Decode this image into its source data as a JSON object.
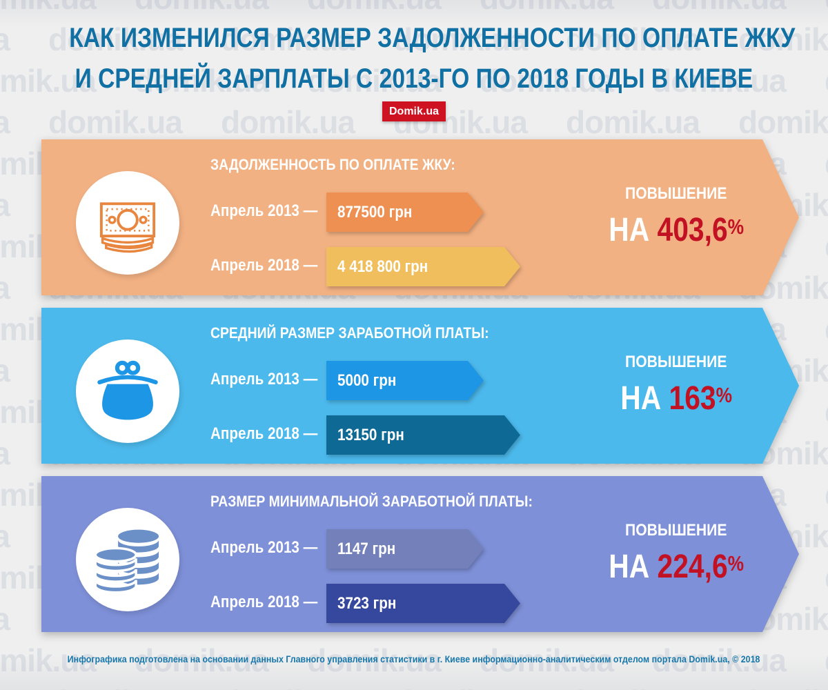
{
  "watermark": {
    "text": "domik.ua"
  },
  "header": {
    "title_line1": "КАК ИЗМЕНИЛСЯ РАЗМЕР ЗАДОЛЖЕННОСТИ ПО ОПЛАТЕ ЖКУ",
    "title_line2": "И СРЕДНЕЙ ЗАРПЛАТЫ С 2013-ГО ПО 2018 ГОДЫ В КИЕВЕ",
    "logo": "Domik.ua",
    "title_color": "#1070a3",
    "logo_color": "#cf1222"
  },
  "panels": [
    {
      "id": "debt",
      "icon": "banknote-icon",
      "title": "ЗАДОЛЖЕННОСТЬ ПО ОПЛАТЕ ЖКУ:",
      "rows": [
        {
          "label": "Апрель 2013 —",
          "value": "877500 грн"
        },
        {
          "label": "Апрель 2018  —",
          "value": "4 418 800 грн"
        }
      ],
      "increase_label": "ПОВЫШЕНИЕ",
      "increase_prefix": "НА ",
      "increase_value": "403,6",
      "increase_suffix": "%",
      "colors": {
        "panel": "#f2b183",
        "bar_2013": "#ee9051",
        "bar_2018": "#f0be5c"
      }
    },
    {
      "id": "avg-salary",
      "icon": "purse-icon",
      "title": "СРЕДНИЙ РАЗМЕР ЗАРАБОТНОЙ ПЛАТЫ:",
      "rows": [
        {
          "label": "Апрель 2013 —",
          "value": "5000 грн"
        },
        {
          "label": "Апрель 2018 —",
          "value": "13150 грн"
        }
      ],
      "increase_label": "ПОВЫШЕНИЕ",
      "increase_prefix": "НА ",
      "increase_value": "163",
      "increase_suffix": "%",
      "colors": {
        "panel": "#4cb9ec",
        "bar_2013": "#1e96e6",
        "bar_2018": "#0e6a94"
      }
    },
    {
      "id": "min-salary",
      "icon": "coins-icon",
      "title": "РАЗМЕР МИНИМАЛЬНОЙ ЗАРАБОТНОЙ ПЛАТЫ:",
      "rows": [
        {
          "label": "Апрель 2013 —",
          "value": "1147 грн"
        },
        {
          "label": "Апрель 2018 —",
          "value": "3723 грн"
        }
      ],
      "increase_label": "ПОВЫШЕНИЕ",
      "increase_prefix": "НА ",
      "increase_value": "224,6",
      "increase_suffix": "%",
      "colors": {
        "panel": "#7e90d8",
        "bar_2013": "#7380b9",
        "bar_2018": "#36479e"
      }
    }
  ],
  "footer": {
    "credit": "Инфографика подготовлена  на основании данных Главного управления статистики в г. Киеве информационно-аналитическим отделом портала Domik.ua, © 2018"
  },
  "chart_data": {
    "type": "bar",
    "title": "КАК ИЗМЕНИЛСЯ РАЗМЕР ЗАДОЛЖЕННОСТИ ПО ОПЛАТЕ ЖКУ И СРЕДНЕЙ ЗАРПЛАТЫ С 2013-ГО ПО 2018 ГОДЫ В КИЕВЕ",
    "categories": [
      "Апрель 2013",
      "Апрель 2018"
    ],
    "unit": "грн",
    "series": [
      {
        "name": "ЗАДОЛЖЕННОСТЬ ПО ОПЛАТЕ ЖКУ",
        "values": [
          877500,
          4418800
        ],
        "increase": "403,6%"
      },
      {
        "name": "СРЕДНИЙ РАЗМЕР ЗАРАБОТНОЙ ПЛАТЫ",
        "values": [
          5000,
          13150
        ],
        "increase": "163%"
      },
      {
        "name": "РАЗМЕР МИНИМАЛЬНОЙ ЗАРАБОТНОЙ ПЛАТЫ",
        "values": [
          1147,
          3723
        ],
        "increase": "224,6%"
      }
    ],
    "legend_position": "none",
    "grid": false
  }
}
